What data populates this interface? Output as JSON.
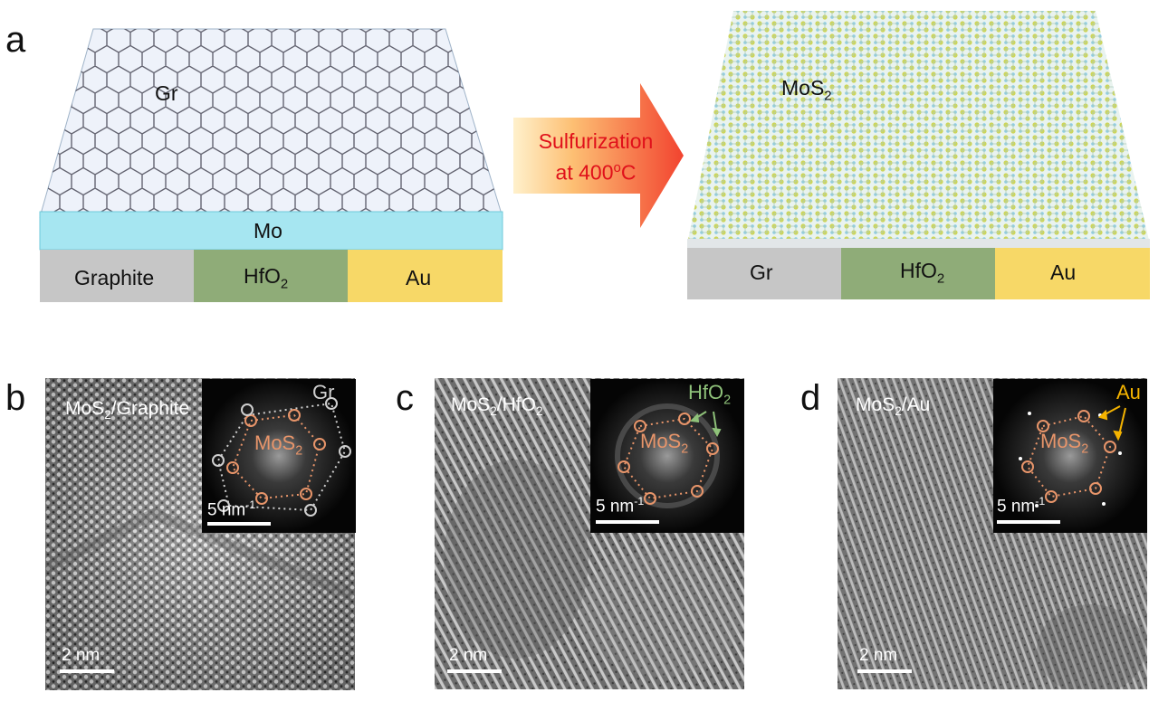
{
  "panel_a": {
    "letter": "a",
    "left_stack": {
      "top_label": "Gr",
      "middle_label": "Mo",
      "substrates": [
        {
          "label": "Graphite",
          "color": "#c6c6c6"
        },
        {
          "label": "HfO",
          "sub": "2",
          "color": "#8fac78"
        },
        {
          "label": "Au",
          "color": "#f7d867"
        }
      ]
    },
    "arrow": {
      "line1": "Sulfurization",
      "line2": "at 400",
      "sup": "o",
      "suffix": "C",
      "text_color": "#e0101a"
    },
    "right_stack": {
      "film_label": "MoS",
      "film_sub": "2",
      "substrates": [
        {
          "label": "Gr",
          "color": "#c6c6c6"
        },
        {
          "label": "HfO",
          "sub": "2",
          "color": "#8fac78"
        },
        {
          "label": "Au",
          "color": "#f7d867"
        }
      ]
    }
  },
  "panel_b": {
    "letter": "b",
    "title": "MoS",
    "title_sub": "2",
    "title_suffix": "/Graphite",
    "scale": "2 nm",
    "inset": {
      "scale": "5 nm",
      "scale_sup": "-1",
      "mos2_label": "MoS",
      "mos2_sub": "2",
      "other_label": "Gr",
      "other_color": "#cfcfcf"
    }
  },
  "panel_c": {
    "letter": "c",
    "title": "MoS",
    "title_sub": "2",
    "title_suffix": "/HfO",
    "title_sub2": "2",
    "scale": "2 nm",
    "inset": {
      "scale": "5 nm",
      "scale_sup": "-1",
      "mos2_label": "MoS",
      "mos2_sub": "2",
      "other_label": "HfO",
      "other_sub": "2",
      "other_color": "#8fc27a"
    }
  },
  "panel_d": {
    "letter": "d",
    "title": "MoS",
    "title_sub": "2",
    "title_suffix": "/Au",
    "scale": "2 nm",
    "inset": {
      "scale": "5 nm",
      "scale_sup": "-1",
      "mos2_label": "MoS",
      "mos2_sub": "2",
      "other_label": "Au",
      "other_color": "#f5b400"
    }
  },
  "colors": {
    "mos2_orange": "#e8956a",
    "film_yellow": "#c9d24a",
    "film_blue": "#7fc7e6"
  }
}
